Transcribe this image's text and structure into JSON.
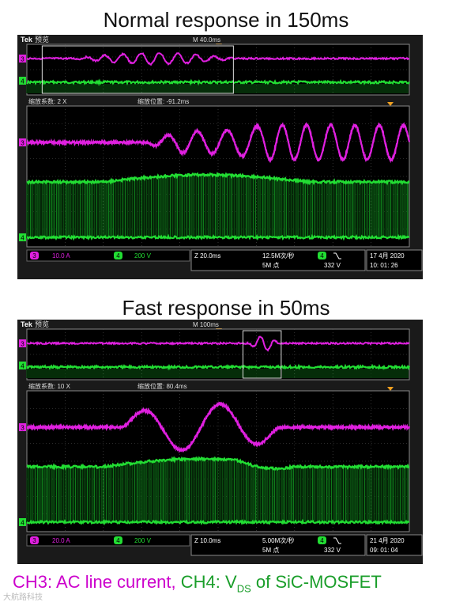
{
  "titles": {
    "normal": "Normal response in 150ms",
    "fast": "Fast response in 50ms"
  },
  "caption": {
    "ch3": "CH3: AC line current,",
    "ch4_prefix": "CH4: V",
    "ch4_sub": "DS",
    "ch4_suffix": " of SiC-MOSFET"
  },
  "watermark": "大航路科技",
  "colors": {
    "ch3": "#e020e0",
    "ch4": "#22dd33",
    "grid": "#555555",
    "bg": "#1a1a1a",
    "accent": "#f0a020"
  },
  "chart_data": [
    {
      "type": "line",
      "title": "Normal response in 150ms",
      "brand": "Tek",
      "mode": "预览",
      "overview_timebase": "M 40.0ms",
      "zoom_factor": "缩放系数: 2 X",
      "zoom_position": "缩放位置: -91.2ms",
      "ch3_scale": "10.0 A",
      "ch4_scale": "200 V",
      "timebase": "Z 20.0ms",
      "sample_rate": "12.5M次/秒",
      "record_length": "5M 点",
      "trigger_channel": "4",
      "trigger_slope_icon": "falling-edge-icon",
      "trigger_level": "332 V",
      "date": "17 4月   2020",
      "time": "10: 01: 26",
      "ch3_marker": "3",
      "ch4_marker": "4",
      "series": [
        {
          "name": "CH3",
          "behavior": "steady then 4 slow oscillations then 5 fast oscillations",
          "osc_start_div": 3.1,
          "osc_end_div": 10
        },
        {
          "name": "CH4",
          "behavior": "switching band with slight rise during transient"
        }
      ]
    },
    {
      "type": "line",
      "title": "Fast response in 50ms",
      "brand": "Tek",
      "mode": "预览",
      "overview_timebase": "M 100ms",
      "zoom_factor": "缩放系数: 10 X",
      "zoom_position": "缩放位置: 80.4ms",
      "ch3_scale": "20.0 A",
      "ch4_scale": "200 V",
      "timebase": "Z 10.0ms",
      "sample_rate": "5.00M次/秒",
      "record_length": "5M 点",
      "trigger_channel": "4",
      "trigger_slope_icon": "falling-edge-icon",
      "trigger_level": "332 V",
      "date": "21 4月   2020",
      "time": "09: 01: 04",
      "ch3_marker": "3",
      "ch4_marker": "4",
      "series": [
        {
          "name": "CH3",
          "behavior": "steady then 2 large oscillations then steady",
          "osc_start_div": 2.5,
          "osc_end_div": 6.6
        },
        {
          "name": "CH4",
          "behavior": "switching band with slight rise during transient"
        }
      ]
    }
  ]
}
